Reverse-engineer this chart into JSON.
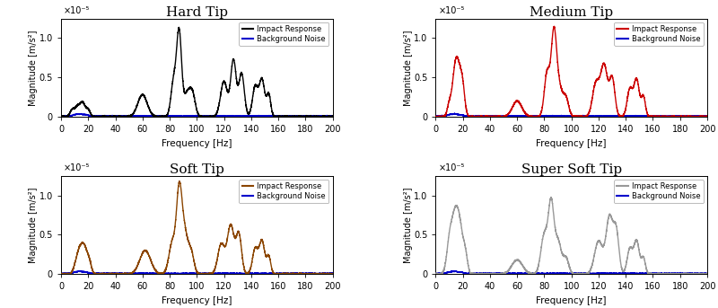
{
  "titles": [
    "Hard Tip",
    "Medium Tip",
    "Soft Tip",
    "Super Soft Tip"
  ],
  "colors": [
    "#000000",
    "#CC0000",
    "#8B4500",
    "#999999"
  ],
  "bg_noise_color": "#0000CC",
  "xlabel": "Frequency [Hz]",
  "ylabel": "Magnitude [m/s²]",
  "xlim": [
    0,
    200
  ],
  "ylim": [
    0,
    1.25e-05
  ],
  "yticks": [
    0,
    5e-06,
    1e-05
  ],
  "xticks": [
    0,
    20,
    40,
    60,
    80,
    100,
    120,
    140,
    160,
    180,
    200
  ],
  "legend_impact": "Impact Response",
  "legend_noise": "Background Noise",
  "scale_label": "×10⁻⁵",
  "linewidth": 1.0
}
